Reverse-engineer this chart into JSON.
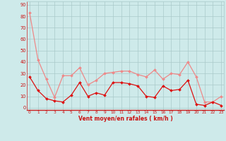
{
  "hours": [
    0,
    1,
    2,
    3,
    4,
    5,
    6,
    7,
    8,
    9,
    10,
    11,
    12,
    13,
    14,
    15,
    16,
    17,
    18,
    19,
    20,
    21,
    22,
    23
  ],
  "wind_avg": [
    27,
    15,
    8,
    6,
    5,
    11,
    22,
    10,
    13,
    11,
    22,
    22,
    21,
    19,
    10,
    9,
    19,
    15,
    16,
    24,
    3,
    2,
    5,
    2
  ],
  "wind_gust": [
    83,
    42,
    25,
    9,
    28,
    28,
    35,
    20,
    24,
    30,
    31,
    32,
    32,
    29,
    27,
    33,
    25,
    30,
    29,
    40,
    27,
    5,
    5,
    10
  ],
  "ylabel_ticks": [
    0,
    10,
    20,
    30,
    40,
    50,
    60,
    70,
    80,
    90
  ],
  "xlabel": "Vent moyen/en rafales ( km/h )",
  "bg_color": "#ceeaea",
  "grid_color": "#aacaca",
  "avg_color": "#dd1111",
  "gust_color": "#ee8888",
  "axis_color": "#cc2222",
  "text_color": "#cc1111",
  "ylim": [
    -2,
    93
  ],
  "xlim": [
    -0.3,
    23.3
  ]
}
